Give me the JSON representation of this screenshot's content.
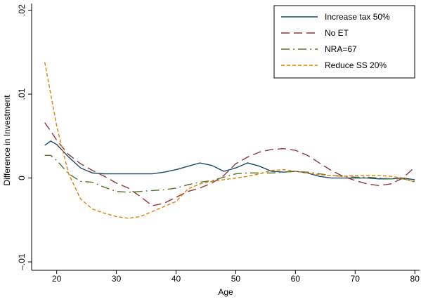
{
  "chart_data": {
    "type": "line",
    "x_label": "Age",
    "y_label": "Difference in Investment",
    "x": [
      18,
      19,
      20,
      22,
      24,
      26,
      28,
      30,
      32,
      34,
      36,
      38,
      40,
      42,
      44,
      46,
      48,
      50,
      52,
      54,
      56,
      58,
      60,
      62,
      64,
      66,
      68,
      70,
      72,
      74,
      76,
      78,
      80
    ],
    "series": [
      {
        "name": "Increase tax 50%",
        "color": "#1a476f",
        "dash": "solid",
        "values": [
          0.0039,
          0.0044,
          0.004,
          0.0025,
          0.0012,
          0.0006,
          0.0005,
          0.0005,
          0.0005,
          0.0005,
          0.0005,
          0.0007,
          0.001,
          0.0014,
          0.0018,
          0.0015,
          0.0008,
          0.0012,
          0.0018,
          0.0014,
          0.0008,
          0.0007,
          0.0008,
          0.0006,
          0.0002,
          0,
          0,
          0,
          0,
          -0.0001,
          -0.0001,
          0,
          -0.0002
        ]
      },
      {
        "name": "No ET",
        "color": "#90353b",
        "dash": "long-dash",
        "values": [
          0.0066,
          0.0056,
          0.0045,
          0.0028,
          0.0017,
          0.0009,
          0.0002,
          -0.0006,
          -0.0012,
          -0.0022,
          -0.0033,
          -0.003,
          -0.0023,
          -0.0016,
          -0.0012,
          -0.0006,
          0.0003,
          0.0017,
          0.0025,
          0.0031,
          0.0034,
          0.0035,
          0.0033,
          0.0027,
          0.0018,
          0.0009,
          0.0002,
          -0.0003,
          -0.0007,
          -0.0009,
          -0.0007,
          0,
          0.0013
        ]
      },
      {
        "name": "NRA=67",
        "color": "#55752f",
        "dash": "long-dash-dot",
        "values": [
          0.0027,
          0.0027,
          0.0021,
          0.0005,
          -0.0004,
          -0.0005,
          -0.0011,
          -0.0016,
          -0.0017,
          -0.0016,
          -0.0015,
          -0.0014,
          -0.0012,
          -0.0008,
          -0.0005,
          -0.0003,
          0.0001,
          0.0005,
          0.0006,
          0.0006,
          0.0006,
          0.0007,
          0.0008,
          0.0007,
          0.0005,
          0.0003,
          0.0002,
          0.0001,
          0.0001,
          0,
          -0.0001,
          -0.0001,
          -0.0004
        ]
      },
      {
        "name": "Reduce SS 20%",
        "color": "#e37e00",
        "dash": "short-dash",
        "values": [
          0.0138,
          0.01,
          0.0062,
          0.0005,
          -0.0025,
          -0.0037,
          -0.0042,
          -0.0046,
          -0.0048,
          -0.0046,
          -0.004,
          -0.0034,
          -0.0028,
          -0.0013,
          -0.0007,
          -0.0004,
          -0.0002,
          0,
          0.0002,
          0.0005,
          0.0009,
          0.001,
          0.0008,
          0.0006,
          0.0004,
          0.0003,
          0.0002,
          0.0003,
          0.0003,
          0.0003,
          0.0002,
          0,
          -0.0005
        ]
      }
    ],
    "xlim": [
      15.8,
      80.8
    ],
    "ylim": [
      -0.011,
      0.0208
    ],
    "xticks": [
      20,
      30,
      40,
      50,
      60,
      70,
      80
    ],
    "yticks": [
      {
        "value": -0.01,
        "label": "–.01"
      },
      0,
      {
        "value": 0.01,
        "label": ".01"
      },
      {
        "value": 0.02,
        "label": ".02"
      }
    ],
    "grid": false,
    "legend_position": "top-right"
  }
}
